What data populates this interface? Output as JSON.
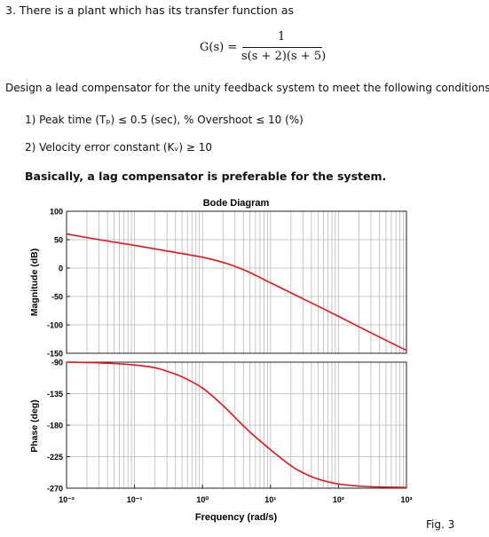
{
  "problem": {
    "header": "3.  There is a plant which has its transfer function as",
    "tf_lhs": "G(s) =",
    "tf_num": "1",
    "tf_den": "s(s + 2)(s + 5)",
    "design": "Design a lead compensator for the unity feedback system to meet the following conditions.",
    "cond1": "1)   Peak time (Tₚ) ≤ 0.5 (sec), % Overshoot ≤ 10 (%)",
    "cond2": "2)   Velocity error constant (Kᵥ) ≥ 10",
    "note": "Basically, a lag compensator is preferable for the system."
  },
  "figure_label": "Fig. 3",
  "chart_data": [
    {
      "type": "line",
      "title": "Bode Diagram",
      "xlabel": "",
      "ylabel": "Magnitude (dB)",
      "x_scale": "log",
      "xlim": [
        0.01,
        1000
      ],
      "ylim": [
        -150,
        100
      ],
      "yticks": [
        -150,
        -100,
        -50,
        0,
        50,
        100
      ],
      "grid": true,
      "series": [
        {
          "x": [
            0.01,
            0.03,
            0.1,
            0.3,
            1,
            2,
            3,
            5,
            10,
            30,
            100,
            300,
            1000
          ],
          "y": [
            60,
            50,
            40,
            30,
            19,
            10,
            3,
            -8,
            -26,
            -54,
            -85,
            -114,
            -145
          ]
        }
      ]
    },
    {
      "type": "line",
      "title": "",
      "xlabel": "Frequency (rad/s)",
      "ylabel": "Phase (deg)",
      "x_scale": "log",
      "xlim": [
        0.01,
        1000
      ],
      "ylim": [
        -270,
        -90
      ],
      "yticks": [
        -270,
        -225,
        -180,
        -135,
        -90
      ],
      "xticks": [
        "10⁻²",
        "10⁻¹",
        "10⁰",
        "10¹",
        "10²",
        "10³"
      ],
      "grid": true,
      "series": [
        {
          "x": [
            0.01,
            0.03,
            0.1,
            0.2,
            0.3,
            0.5,
            1,
            2,
            3,
            5,
            10,
            20,
            30,
            50,
            100,
            200,
            300,
            1000
          ],
          "y": [
            -90,
            -91,
            -94,
            -98,
            -103,
            -111,
            -127,
            -152,
            -169,
            -190,
            -215,
            -238,
            -248,
            -257,
            -264,
            -267,
            -268,
            -269
          ]
        }
      ]
    }
  ]
}
